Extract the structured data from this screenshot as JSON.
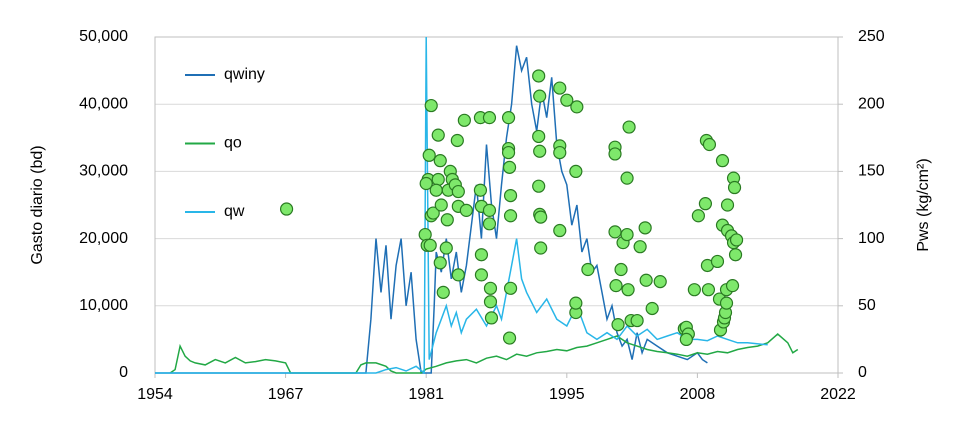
{
  "chart_data": {
    "type": "line",
    "xlim": [
      1954,
      2022
    ],
    "xticks": [
      1954,
      1967,
      1981,
      1995,
      2008,
      2022
    ],
    "ylim": [
      0,
      50000
    ],
    "yticks": [
      0,
      {
        "value": 10000,
        "label": "10,000"
      },
      {
        "value": 20000,
        "label": "20,000"
      },
      {
        "value": 30000,
        "label": "30,000"
      },
      {
        "value": 40000,
        "label": "40,000"
      },
      {
        "value": 50000,
        "label": "50,000"
      }
    ],
    "y2lim": [
      0,
      250
    ],
    "y2ticks": [
      0,
      50,
      100,
      150,
      200,
      250
    ],
    "y_label": "Gasto diario (bd)",
    "y2_label": "Pws (kg/cm²)",
    "grid": true,
    "legend": "upper left",
    "series": [
      {
        "name": "qwiny",
        "color": "#1f6fb5",
        "x": [
          1954,
          1975,
          1975.5,
          1976,
          1976.5,
          1977,
          1977.5,
          1978,
          1978.5,
          1979,
          1979.5,
          1980,
          1980.5,
          1981.5,
          1981.8,
          1982,
          1982.5,
          1983,
          1983.5,
          1984,
          1984.5,
          1985,
          1985.5,
          1986,
          1986.5,
          1987,
          1987.5,
          1988,
          1988.5,
          1989,
          1989.5,
          1990,
          1990.5,
          1991,
          1991.5,
          1992,
          1992.5,
          1993,
          1993.5,
          1994,
          1994.5,
          1995,
          1995.5,
          1996,
          1996.5,
          1997,
          1997.5,
          1998,
          1998.5,
          1999,
          1999.5,
          2000,
          2000.5,
          2001,
          2001.5,
          2002,
          2002.5,
          2003,
          2004,
          2005,
          2006,
          2007,
          2008,
          2008.5,
          2009
        ],
        "values": [
          0,
          0,
          8000,
          20000,
          12000,
          19000,
          8000,
          16000,
          20000,
          10000,
          15000,
          5000,
          0,
          0,
          10000,
          18000,
          15000,
          20000,
          14000,
          18000,
          12000,
          16000,
          22000,
          28000,
          20000,
          34000,
          25000,
          20000,
          28000,
          35000,
          40000,
          48700,
          45000,
          47000,
          40000,
          36000,
          42000,
          38000,
          44000,
          34000,
          30000,
          28000,
          22000,
          25000,
          18000,
          20000,
          15000,
          16000,
          12000,
          8000,
          10000,
          6000,
          4000,
          5000,
          2000,
          6000,
          3000,
          5000,
          4000,
          3000,
          2500,
          2000,
          3000,
          2000,
          1500
        ]
      },
      {
        "name": "qo",
        "color": "#22a845",
        "x": [
          1955.5,
          1956,
          1956.5,
          1957,
          1957.5,
          1958,
          1959,
          1960,
          1961,
          1962,
          1963,
          1964,
          1965,
          1966,
          1967,
          1967.5,
          1974,
          1974.5,
          1975,
          1976,
          1977,
          1977.5,
          1978,
          1980.5,
          1981,
          1982,
          1983,
          1984,
          1985,
          1986,
          1987,
          1988,
          1989,
          1990,
          1991,
          1992,
          1993,
          1994,
          1995,
          1996,
          1997,
          1998,
          1999,
          2000,
          2001,
          2002,
          2003,
          2004,
          2005,
          2006,
          2007,
          2008,
          2009,
          2010,
          2011,
          2012,
          2013,
          2014,
          2015,
          2016,
          2017,
          2017.5,
          2018
        ],
        "values": [
          0,
          500,
          4000,
          2500,
          1800,
          1500,
          1200,
          2000,
          1500,
          2300,
          1500,
          1700,
          2000,
          1800,
          1500,
          0,
          0,
          1200,
          1500,
          1500,
          1000,
          300,
          0,
          0,
          600,
          1000,
          1500,
          1800,
          2000,
          1500,
          2200,
          2500,
          2000,
          2800,
          2500,
          3000,
          3200,
          3500,
          3300,
          3800,
          4000,
          4500,
          5000,
          5500,
          4500,
          4000,
          3500,
          3200,
          3000,
          2800,
          2500,
          3000,
          2800,
          3200,
          3000,
          3500,
          3800,
          4000,
          4500,
          5800,
          4500,
          3000,
          3500
        ]
      },
      {
        "name": "qw",
        "color": "#29b6e8",
        "x": [
          1954,
          1976,
          1977,
          1978,
          1979,
          1980,
          1980.8,
          1981,
          1981.3,
          1982,
          1982.5,
          1983,
          1983.5,
          1984,
          1984.5,
          1985,
          1986,
          1987,
          1988,
          1988.5,
          1989,
          1989.5,
          1990,
          1990.5,
          1991,
          1992,
          1993,
          1994,
          1995,
          1996,
          1997,
          1998,
          1999,
          2000,
          2001,
          2002,
          2003,
          2004,
          2005,
          2006,
          2007,
          2008,
          2009,
          2010,
          2011,
          2012,
          2013,
          2015
        ],
        "values": [
          0,
          0,
          500,
          800,
          300,
          1000,
          0,
          50000,
          2000,
          6000,
          8000,
          10000,
          7000,
          9000,
          6000,
          8000,
          9500,
          7000,
          10000,
          8000,
          12000,
          16000,
          20000,
          14000,
          12000,
          9000,
          11000,
          8000,
          7000,
          10000,
          6000,
          5000,
          6000,
          5000,
          7000,
          5500,
          6500,
          5000,
          5500,
          6000,
          5000,
          5000,
          4800,
          5500,
          5000,
          4500,
          4500,
          4200
        ]
      }
    ],
    "points": {
      "axis": "y2",
      "color": "#7ee86b",
      "edge_color": "#2a7a22",
      "x": [
        1967.1,
        1981.5,
        1981.3,
        1981.2,
        1981.0,
        1981.5,
        1981.7,
        1980.9,
        1981.1,
        1981.4,
        1982.2,
        1982.4,
        1982.2,
        1982.0,
        1982.5,
        1982.4,
        1982.7,
        1983.0,
        1983.1,
        1983.4,
        1983.6,
        1983.2,
        1983.9,
        1984.1,
        1984.2,
        1984.2,
        1984.2,
        1984.8,
        1985.0,
        1986.4,
        1986.4,
        1986.5,
        1986.5,
        1986.5,
        1987.3,
        1987.3,
        1987.3,
        1987.4,
        1987.4,
        1987.5,
        1989.2,
        1989.2,
        1989.2,
        1989.3,
        1989.4,
        1989.4,
        1989.4,
        1989.3,
        1992.2,
        1992.3,
        1992.2,
        1992.3,
        1992.2,
        1992.3,
        1992.4,
        1992.4,
        1994.3,
        1995.0,
        1996.0,
        1994.3,
        1994.3,
        1995.9,
        1994.3,
        1995.9,
        1995.9,
        1997.1,
        1999.8,
        1999.8,
        1999.8,
        1999.9,
        2000.1,
        2000.4,
        2000.6,
        2001.0,
        2001.2,
        2001.0,
        2001.1,
        2001.4,
        2002.0,
        2002.3,
        2002.8,
        2002.9,
        2003.5,
        2004.3,
        2006.7,
        2006.9,
        2007.1,
        2006.9,
        2007.7,
        2008.1,
        2008.8,
        2008.9,
        2009.2,
        2009.0,
        2009.1,
        2010.0,
        2010.2,
        2010.3,
        2010.5,
        2010.5,
        2010.6,
        2010.7,
        2010.8,
        2010.9,
        2010.9,
        2011.0,
        2011.0,
        2011.4,
        2011.5,
        2011.6,
        2011.7,
        2011.6,
        2011.9,
        2011.8
      ],
      "values": [
        122,
        199,
        162,
        144,
        141,
        117,
        119,
        103,
        95,
        95,
        177,
        158,
        144,
        136,
        125,
        82,
        60,
        93,
        114,
        150,
        144,
        136,
        140,
        173,
        135,
        124,
        73,
        188,
        121,
        190,
        136,
        124,
        88,
        73,
        190,
        121,
        111,
        63,
        53,
        41,
        190,
        167,
        164,
        153,
        132,
        117,
        63,
        26,
        221,
        206,
        176,
        165,
        139,
        118,
        93,
        116,
        212,
        203,
        198,
        169,
        164,
        150,
        106,
        45,
        52,
        77,
        168,
        163,
        105,
        65,
        36,
        77,
        97,
        103,
        183,
        145,
        62,
        39,
        39,
        94,
        108,
        69,
        48,
        68,
        33,
        34,
        29,
        25,
        62,
        117,
        126,
        173,
        170,
        80,
        62,
        83,
        55,
        32,
        158,
        110,
        38,
        41,
        45,
        62,
        52,
        106,
        125,
        102,
        65,
        145,
        138,
        97,
        99,
        88
      ]
    }
  }
}
